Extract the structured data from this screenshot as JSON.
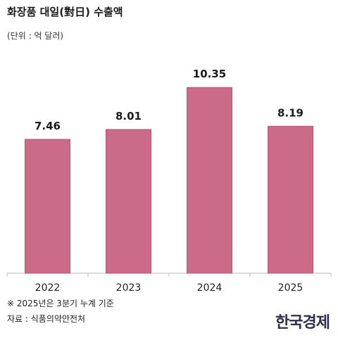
{
  "title": "화장품 대일(對日) 수출액",
  "unit": "(단위 : 억 달러)",
  "chart_data": {
    "type": "bar",
    "categories": [
      "2022",
      "2023",
      "2024",
      "2025"
    ],
    "values": [
      7.46,
      8.01,
      10.35,
      8.19
    ],
    "value_labels": [
      "7.46",
      "8.01",
      "10.35",
      "8.19"
    ],
    "ylim": [
      0,
      11.3
    ],
    "grid": false,
    "bar_color": "#cc6a8a"
  },
  "footnote": "※ 2025년은 3분기 누계 기준",
  "source": "자료 : 식품의약안전처",
  "logo": "한국경제"
}
